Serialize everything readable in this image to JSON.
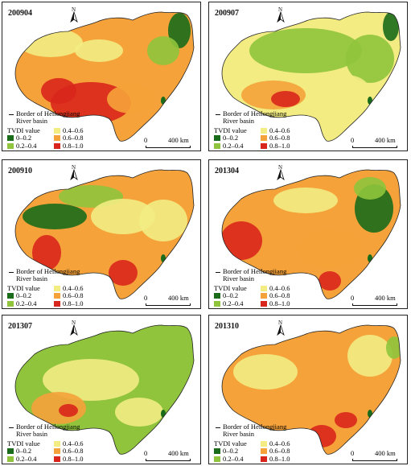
{
  "panels": [
    {
      "title": "200904"
    },
    {
      "title": "200907"
    },
    {
      "title": "200910"
    },
    {
      "title": "201304"
    },
    {
      "title": "201307"
    },
    {
      "title": "201310"
    }
  ],
  "legend": {
    "north_label": "N",
    "border_line1": "Border of Heilongjiang",
    "border_line2": "River basin",
    "tvdi_title": "TVDI value",
    "classes": [
      {
        "label": "0–0.2",
        "color": "#1a6b1a"
      },
      {
        "label": "0.2–0.4",
        "color": "#8fc43c"
      },
      {
        "label": "0.4–0.6",
        "color": "#f2ec83"
      },
      {
        "label": "0.6–0.8",
        "color": "#f5a23a"
      },
      {
        "label": "0.8–1.0",
        "color": "#d9261c"
      }
    ]
  },
  "scale": {
    "start": "0",
    "end": "400 km"
  }
}
